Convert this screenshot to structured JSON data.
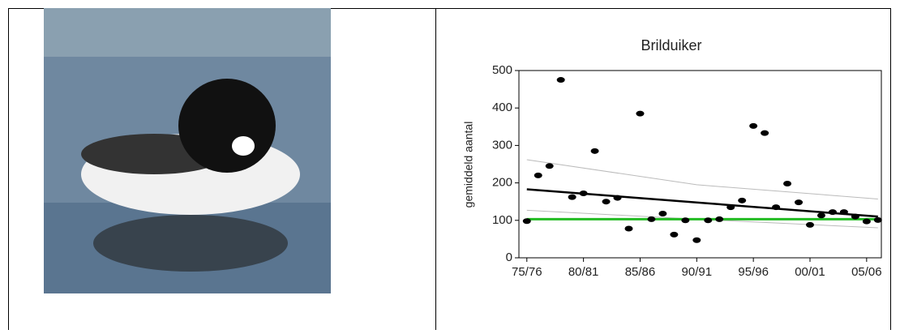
{
  "chart_data": {
    "type": "scatter",
    "title": "Brilduiker",
    "y_label": "gemiddeld aantal",
    "x": [
      1975,
      1976,
      1977,
      1978,
      1979,
      1980,
      1981,
      1982,
      1983,
      1984,
      1985,
      1986,
      1987,
      1988,
      1989,
      1990,
      1991,
      1992,
      1993,
      1994,
      1995,
      1996,
      1997,
      1998,
      1999,
      2000,
      2001,
      2002,
      2003,
      2004,
      2005,
      2006
    ],
    "series": [
      {
        "color": "#000000",
        "values": [
          98,
          220,
          245,
          475,
          162,
          172,
          285,
          150,
          160,
          78,
          385,
          103,
          118,
          62,
          100,
          47,
          100,
          103,
          135,
          153,
          352,
          333,
          135,
          198,
          148,
          88,
          113,
          122,
          122,
          110,
          97,
          101
        ]
      }
    ],
    "trend": {
      "x": [
        1975,
        2006
      ],
      "values": [
        183,
        110
      ],
      "color": "#000000"
    },
    "upper_band": {
      "x": [
        1975,
        1990,
        2006
      ],
      "values": [
        262,
        195,
        157
      ],
      "color": "#bbbbbb"
    },
    "lower_band": {
      "x": [
        1975,
        1990,
        2006
      ],
      "values": [
        127,
        103,
        80
      ],
      "color": "#bbbbbb"
    },
    "reference": {
      "x": [
        1975,
        2006
      ],
      "values": [
        103,
        103
      ],
      "color": "#22bb22"
    },
    "xlim": [
      1974.3,
      2006.3
    ],
    "ylim": [
      0,
      500
    ],
    "xticks": [
      {
        "value": 1975,
        "label": "75/76"
      },
      {
        "value": 1980,
        "label": "80/81"
      },
      {
        "value": 1985,
        "label": "85/86"
      },
      {
        "value": 1990,
        "label": "90/91"
      },
      {
        "value": 1995,
        "label": "95/96"
      },
      {
        "value": 2000,
        "label": "00/01"
      },
      {
        "value": 2005,
        "label": "05/06"
      }
    ],
    "yticks": [
      0,
      100,
      200,
      300,
      400,
      500
    ]
  }
}
